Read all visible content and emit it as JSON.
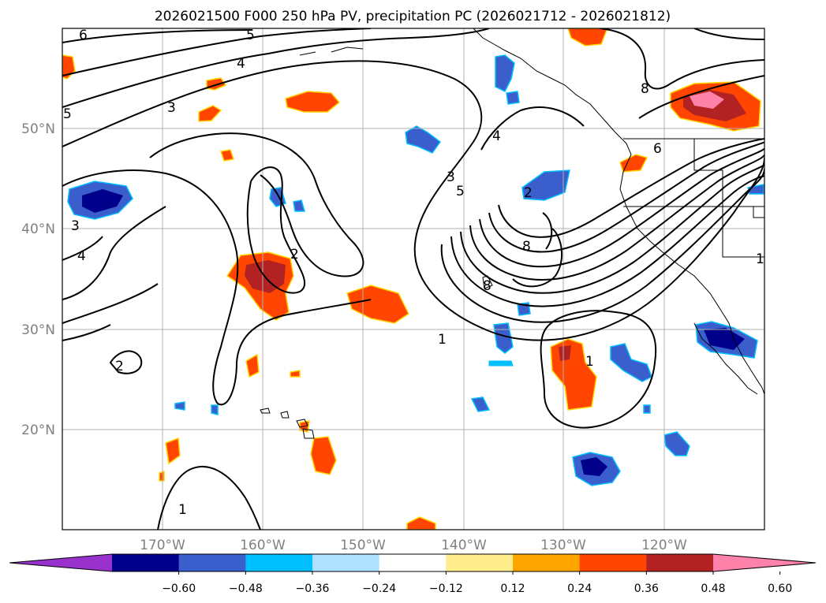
{
  "title": "2026021500 F000 250 hPa PV, precipitation PC (2026021712 - 2026021812)",
  "map": {
    "lat_labels": [
      "50°N",
      "40°N",
      "30°N",
      "20°N"
    ],
    "lon_labels": [
      "170°W",
      "160°W",
      "150°W",
      "140°W",
      "130°W",
      "120°W"
    ],
    "gridlines": true,
    "coastline_color": "#000000",
    "contour_color": "#000000"
  },
  "pv_contour_labels": [
    "6",
    "5",
    "4",
    "3",
    "5",
    "3",
    "4",
    "2",
    "1",
    "2",
    "1",
    "4",
    "3",
    "5",
    "8",
    "8",
    "8",
    "6",
    "1",
    "1",
    "2"
  ],
  "colorbar": {
    "ticks": [
      "−0.60",
      "−0.48",
      "−0.36",
      "−0.24",
      "−0.12",
      "0.12",
      "0.24",
      "0.36",
      "0.48",
      "0.60"
    ],
    "colors": [
      "#9932cc",
      "#00008b",
      "#3a5fcd",
      "#00bfff",
      "#b0e2ff",
      "#ffffff",
      "#ffec8b",
      "#ffa500",
      "#ff4500",
      "#b22222",
      "#ff82ab"
    ],
    "extend": "both"
  }
}
